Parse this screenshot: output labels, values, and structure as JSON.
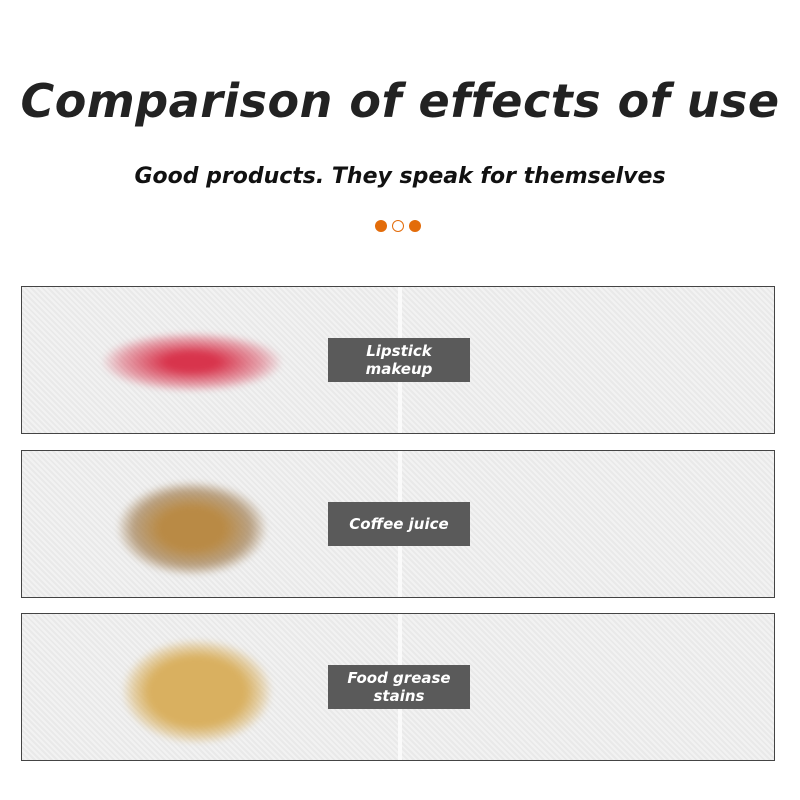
{
  "title": "Comparison of effects of use",
  "subtitle": "Good products. They speak for themselves",
  "accent_color": "#e36c0a",
  "panels": [
    {
      "label_line1": "Lipstick",
      "label_line2": "makeup",
      "stain_color": "#d8344c"
    },
    {
      "label_line1": "Coffee juice",
      "label_line2": "",
      "stain_color": "#b98a45"
    },
    {
      "label_line1": "Food grease",
      "label_line2": "stains",
      "stain_color": "#d9b060"
    }
  ]
}
